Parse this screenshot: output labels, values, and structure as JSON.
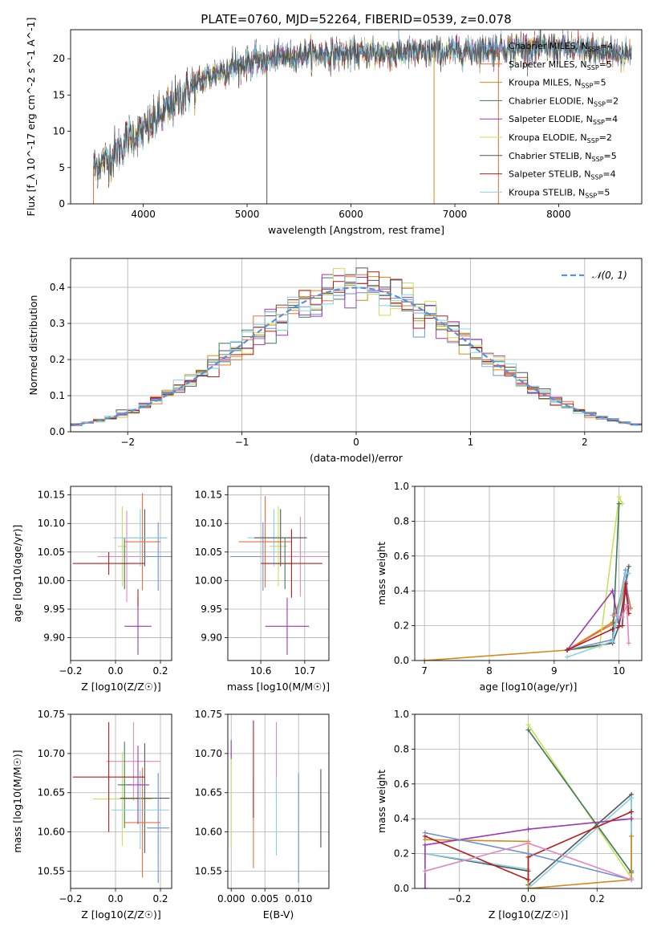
{
  "figure": {
    "title": "PLATE=0760, MJD=52264, FIBERID=0539, z=0.078"
  },
  "colors": {
    "Chabrier MILES": "#6f8fd6",
    "Salpeter MILES": "#e8703b",
    "Kroupa MILES": "#d48a1a",
    "Chabrier ELODIE": "#3f7a5a",
    "Salpeter ELODIE": "#9b3ab3",
    "Kroupa ELODIE": "#c8e05a",
    "Chabrier STELIB": "#555555",
    "Salpeter STELIB": "#b81c1c",
    "Kroupa STELIB": "#86d3e6",
    "pink": "#e089c0",
    "gaussian": "#5b8fd6"
  },
  "chart_data": [
    {
      "id": "spectrum",
      "type": "line",
      "title": "PLATE=0760, MJD=52264, FIBERID=0539, z=0.078",
      "xlabel": "wavelength [Angstrom, rest frame]",
      "ylabel": "Flux [f_λ 10^-17 erg cm^-2 s^-1 A^-1]",
      "xlim": [
        3300,
        8800
      ],
      "ylim": [
        0,
        24
      ],
      "xticks": [
        4000,
        5000,
        6000,
        7000,
        8000
      ],
      "yticks": [
        0,
        5,
        10,
        15,
        20
      ],
      "grid": false,
      "legend_position": "top-right",
      "legend": [
        {
          "series": "Chabrier MILES",
          "label": "Chabrier MILES, N",
          "sub": "SSP",
          "tail": "=4"
        },
        {
          "series": "Salpeter MILES",
          "label": "Salpeter MILES, N",
          "sub": "SSP",
          "tail": "=5"
        },
        {
          "series": "Kroupa MILES",
          "label": "Kroupa MILES, N",
          "sub": "SSP",
          "tail": "=5"
        },
        {
          "series": "Chabrier ELODIE",
          "label": "Chabrier ELODIE, N",
          "sub": "SSP",
          "tail": "=2"
        },
        {
          "series": "Salpeter ELODIE",
          "label": "Salpeter ELODIE, N",
          "sub": "SSP",
          "tail": "=4"
        },
        {
          "series": "Kroupa ELODIE",
          "label": "Kroupa ELODIE, N",
          "sub": "SSP",
          "tail": "=2"
        },
        {
          "series": "Chabrier STELIB",
          "label": "Chabrier STELIB, N",
          "sub": "SSP",
          "tail": "=5"
        },
        {
          "series": "Salpeter STELIB",
          "label": "Salpeter STELIB, N",
          "sub": "SSP",
          "tail": "=4"
        },
        {
          "series": "Kroupa STELIB",
          "label": "Kroupa STELIB, N",
          "sub": "SSP",
          "tail": "=5"
        }
      ],
      "continuum_knots": [
        [
          3520,
          5
        ],
        [
          3700,
          6.5
        ],
        [
          3850,
          9
        ],
        [
          4000,
          10
        ],
        [
          4150,
          12
        ],
        [
          4300,
          14
        ],
        [
          4500,
          16.5
        ],
        [
          4700,
          18
        ],
        [
          5000,
          19.5
        ],
        [
          5500,
          20.5
        ],
        [
          6000,
          20.7
        ],
        [
          6500,
          20.8
        ],
        [
          7000,
          21.0
        ],
        [
          7500,
          21.5
        ],
        [
          8000,
          21.5
        ],
        [
          8400,
          21.0
        ],
        [
          8700,
          20.6
        ]
      ]
    },
    {
      "id": "residual-histogram",
      "type": "histogram",
      "xlabel": "(data-model)/error",
      "ylabel": "Normed distribution",
      "xlim": [
        -2.5,
        2.5
      ],
      "ylim": [
        0,
        0.48
      ],
      "xticks": [
        -2,
        -1,
        0,
        1,
        2
      ],
      "yticks": [
        0,
        0.1,
        0.2,
        0.3,
        0.4
      ],
      "grid": true,
      "legend_position": "top-right",
      "legend": [
        {
          "label": "𝒩(0, 1)",
          "style": "dashed"
        }
      ],
      "bin_width": 0.1,
      "reference_curve": "standard normal density"
    },
    {
      "id": "age-vs-Z",
      "type": "errorbar",
      "xlabel": "Z [log10(Z/Z☉)]",
      "ylabel": "age [log10(age/yr)]",
      "xlim": [
        -0.2,
        0.25
      ],
      "ylim": [
        9.86,
        10.165
      ],
      "xticks": [
        -0.2,
        0.0,
        0.2
      ],
      "yticks": [
        9.9,
        9.95,
        10.0,
        10.05,
        10.1,
        10.15
      ],
      "grid": true,
      "points": [
        {
          "color": "Kroupa ELODIE",
          "x": 0.03,
          "xerr": 0.02,
          "y": 10.06,
          "yerr": 0.07
        },
        {
          "color": "pink",
          "x": 0.05,
          "xerr": 0.13,
          "y": 10.042,
          "yerr": 0.08
        },
        {
          "color": "Chabrier ELODIE",
          "x": 0.04,
          "xerr": 0.02,
          "y": 10.03,
          "yerr": 0.045
        },
        {
          "color": "Chabrier STELIB",
          "x": 0.13,
          "xerr": 0.1,
          "y": 10.075,
          "yerr": 0.05
        },
        {
          "color": "Chabrier MILES",
          "x": 0.19,
          "xerr": 0.07,
          "y": 10.042,
          "yerr": 0.06
        },
        {
          "color": "Kroupa STELIB",
          "x": 0.11,
          "xerr": 0.12,
          "y": 10.075,
          "yerr": 0.05
        },
        {
          "color": "Salpeter MILES",
          "x": 0.12,
          "xerr": 0.08,
          "y": 10.068,
          "yerr": 0.085
        },
        {
          "color": "Salpeter STELIB",
          "x": -0.03,
          "xerr": 0.16,
          "y": 10.03,
          "yerr": 0.02
        },
        {
          "color": "Salpeter ELODIE",
          "x": 0.1,
          "xerr": 0.06,
          "y": 9.92,
          "yerr": 0.05
        },
        {
          "color": "Salpeter STELIB",
          "x": 0.1,
          "xerr": 0.0,
          "y": 9.97,
          "yerr": 0.015
        }
      ]
    },
    {
      "id": "age-vs-mass",
      "type": "errorbar",
      "xlabel": "mass [log10(M/M☉)]",
      "xlim": [
        10.525,
        10.755
      ],
      "ylim": [
        9.86,
        10.165
      ],
      "xticks": [
        10.6,
        10.7
      ],
      "yticks": [
        9.9,
        9.95,
        10.0,
        10.05,
        10.1,
        10.15
      ],
      "grid": true,
      "points": [
        {
          "color": "Chabrier MILES",
          "x": 10.605,
          "xerr": 0.075,
          "y": 10.042,
          "yerr": 0.06
        },
        {
          "color": "pink",
          "x": 10.69,
          "xerr": 0.09,
          "y": 10.042,
          "yerr": 0.07
        },
        {
          "color": "Kroupa ELODIE",
          "x": 10.64,
          "xerr": 0.02,
          "y": 10.06,
          "yerr": 0.07
        },
        {
          "color": "Chabrier ELODIE",
          "x": 10.655,
          "xerr": 0.02,
          "y": 10.03,
          "yerr": 0.045
        },
        {
          "color": "Kroupa STELIB",
          "x": 10.63,
          "xerr": 0.06,
          "y": 10.075,
          "yerr": 0.05
        },
        {
          "color": "Salpeter MILES",
          "x": 10.61,
          "xerr": 0.06,
          "y": 10.068,
          "yerr": 0.08
        },
        {
          "color": "Salpeter STELIB",
          "x": 10.67,
          "xerr": 0.07,
          "y": 10.03,
          "yerr": 0.06
        },
        {
          "color": "Chabrier STELIB",
          "x": 10.645,
          "xerr": 0.06,
          "y": 10.075,
          "yerr": 0.05
        },
        {
          "color": "Salpeter ELODIE",
          "x": 10.66,
          "xerr": 0.05,
          "y": 9.92,
          "yerr": 0.05
        }
      ]
    },
    {
      "id": "weight-vs-age",
      "type": "line",
      "xlabel": "age [log10(age/yr)]",
      "ylabel": "mass weight",
      "xlim": [
        6.85,
        10.35
      ],
      "ylim": [
        0,
        1.0
      ],
      "xticks": [
        7,
        8,
        9,
        10
      ],
      "yticks": [
        0.0,
        0.2,
        0.4,
        0.6,
        0.8,
        1.0
      ],
      "grid": true,
      "series": [
        {
          "name": "Kroupa MILES",
          "points": [
            [
              7.0,
              0.0
            ],
            [
              9.2,
              0.06
            ],
            [
              9.9,
              0.22
            ],
            [
              10.1,
              0.45
            ],
            [
              10.15,
              0.27
            ]
          ]
        },
        {
          "name": "Salpeter MILES",
          "points": [
            [
              9.2,
              0.06
            ],
            [
              9.95,
              0.22
            ],
            [
              10.1,
              0.45
            ],
            [
              10.18,
              0.3
            ]
          ]
        },
        {
          "name": "Kroupa ELODIE",
          "points": [
            [
              9.2,
              0.06
            ],
            [
              9.7,
              0.08
            ],
            [
              10.0,
              0.94
            ],
            [
              10.05,
              0.9
            ]
          ]
        },
        {
          "name": "Chabrier ELODIE",
          "points": [
            [
              9.2,
              0.06
            ],
            [
              9.9,
              0.1
            ],
            [
              10.0,
              0.9
            ]
          ]
        },
        {
          "name": "Salpeter ELODIE",
          "points": [
            [
              9.2,
              0.06
            ],
            [
              9.9,
              0.4
            ],
            [
              10.0,
              0.2
            ],
            [
              10.1,
              0.4
            ],
            [
              10.15,
              0.3
            ]
          ]
        },
        {
          "name": "Chabrier STELIB",
          "points": [
            [
              9.2,
              0.06
            ],
            [
              9.9,
              0.1
            ],
            [
              10.0,
              0.2
            ],
            [
              10.15,
              0.54
            ]
          ]
        },
        {
          "name": "Chabrier MILES",
          "points": [
            [
              9.2,
              0.06
            ],
            [
              9.9,
              0.12
            ],
            [
              10.1,
              0.52
            ],
            [
              10.15,
              0.3
            ]
          ]
        },
        {
          "name": "Salpeter STELIB",
          "points": [
            [
              9.2,
              0.06
            ],
            [
              9.9,
              0.18
            ],
            [
              10.05,
              0.2
            ],
            [
              10.1,
              0.44
            ],
            [
              10.15,
              0.27
            ]
          ]
        },
        {
          "name": "Kroupa STELIB",
          "points": [
            [
              9.2,
              0.02
            ],
            [
              9.9,
              0.11
            ],
            [
              10.1,
              0.5
            ],
            [
              10.15,
              0.5
            ]
          ]
        },
        {
          "name": "pink",
          "points": [
            [
              9.9,
              0.26
            ],
            [
              10.05,
              0.25
            ],
            [
              10.12,
              0.32
            ],
            [
              10.15,
              0.1
            ]
          ]
        }
      ]
    },
    {
      "id": "mass-vs-Z",
      "type": "errorbar",
      "xlabel": "Z [log10(Z/Z☉)]",
      "ylabel": "mass [log10(M/M☉)]",
      "xlim": [
        -0.2,
        0.25
      ],
      "ylim": [
        10.528,
        10.75
      ],
      "xticks": [
        -0.2,
        0.0,
        0.2
      ],
      "yticks": [
        10.55,
        10.6,
        10.65,
        10.7,
        10.75
      ],
      "grid": true,
      "points": [
        {
          "color": "Kroupa ELODIE",
          "x": 0.03,
          "xerr": 0.13,
          "y": 10.642,
          "yerr": 0.06
        },
        {
          "color": "pink",
          "x": 0.08,
          "xerr": 0.12,
          "y": 10.69,
          "yerr": 0.05
        },
        {
          "color": "Chabrier ELODIE",
          "x": 0.04,
          "xerr": 0.03,
          "y": 10.66,
          "yerr": 0.055
        },
        {
          "color": "Chabrier STELIB",
          "x": 0.13,
          "xerr": 0.11,
          "y": 10.643,
          "yerr": 0.07
        },
        {
          "color": "Chabrier MILES",
          "x": 0.19,
          "xerr": 0.05,
          "y": 10.605,
          "yerr": 0.07
        },
        {
          "color": "Kroupa STELIB",
          "x": 0.11,
          "xerr": 0.13,
          "y": 10.628,
          "yerr": 0.05
        },
        {
          "color": "Salpeter MILES",
          "x": 0.12,
          "xerr": 0.08,
          "y": 10.612,
          "yerr": 0.07
        },
        {
          "color": "Salpeter STELIB",
          "x": -0.03,
          "xerr": 0.16,
          "y": 10.67,
          "yerr": 0.07
        },
        {
          "color": "Salpeter ELODIE",
          "x": 0.1,
          "xerr": 0.05,
          "y": 10.66,
          "yerr": 0.05
        }
      ]
    },
    {
      "id": "mass-vs-ebv",
      "type": "errorbar",
      "xlabel": "E(B-V)",
      "xlim": [
        -0.0005,
        0.0145
      ],
      "ylim": [
        10.528,
        10.75
      ],
      "xticks": [
        0.0,
        0.005,
        0.01
      ],
      "yticks": [
        10.55,
        10.6,
        10.65,
        10.7,
        10.75
      ],
      "grid": true,
      "points": [
        {
          "color": "Kroupa ELODIE",
          "x": 0.0,
          "xerr": 0.0,
          "y": 10.64,
          "yerr": 0.06
        },
        {
          "color": "Salpeter ELODIE",
          "x": 0.0,
          "xerr": 0.0,
          "y": 10.705,
          "yerr": 0.012
        },
        {
          "color": "Salpeter MILES",
          "x": 0.0033,
          "xerr": 0.0,
          "y": 10.612,
          "yerr": 0.058
        },
        {
          "color": "Salpeter STELIB",
          "x": 0.0033,
          "xerr": 0.0,
          "y": 10.68,
          "yerr": 0.062
        },
        {
          "color": "pink",
          "x": 0.0067,
          "xerr": 0.0,
          "y": 10.69,
          "yerr": 0.05
        },
        {
          "color": "Kroupa STELIB",
          "x": 0.0067,
          "xerr": 0.0,
          "y": 10.62,
          "yerr": 0.05
        },
        {
          "color": "Chabrier MILES",
          "x": 0.01,
          "xerr": 0.0,
          "y": 10.605,
          "yerr": 0.07
        },
        {
          "color": "Chabrier STELIB",
          "x": 0.0133,
          "xerr": 0.0,
          "y": 10.63,
          "yerr": 0.05
        }
      ]
    },
    {
      "id": "weight-vs-Z",
      "type": "line",
      "xlabel": "Z [log10(Z/Z☉)]",
      "ylabel": "mass weight",
      "xlim": [
        -0.33,
        0.33
      ],
      "ylim": [
        0,
        1.0
      ],
      "xticks": [
        -0.2,
        0.0,
        0.2
      ],
      "yticks": [
        0.0,
        0.2,
        0.4,
        0.6,
        0.8,
        1.0
      ],
      "grid": true,
      "series": [
        {
          "name": "Kroupa ELODIE",
          "points": [
            [
              0.0,
              0.94
            ],
            [
              0.3,
              0.06
            ]
          ]
        },
        {
          "name": "Chabrier ELODIE",
          "points": [
            [
              0.0,
              0.91
            ],
            [
              0.3,
              0.09
            ]
          ]
        },
        {
          "name": "Chabrier STELIB",
          "points": [
            [
              -0.3,
              0.2
            ],
            [
              0.0,
              0.1
            ],
            [
              0.0,
              0.02
            ],
            [
              0.3,
              0.54
            ],
            [
              0.3,
              0.1
            ]
          ]
        },
        {
          "name": "Kroupa STELIB",
          "points": [
            [
              -0.3,
              0.2
            ],
            [
              0.0,
              0.11
            ],
            [
              0.0,
              0.0
            ],
            [
              0.3,
              0.52
            ],
            [
              0.3,
              0.06
            ]
          ]
        },
        {
          "name": "Kroupa MILES",
          "points": [
            [
              -0.3,
              0.28
            ],
            [
              0.0,
              0.27
            ],
            [
              0.0,
              0.0
            ],
            [
              0.3,
              0.05
            ],
            [
              0.3,
              0.3
            ]
          ]
        },
        {
          "name": "Salpeter ELODIE",
          "points": [
            [
              -0.3,
              0.0
            ],
            [
              -0.3,
              0.25
            ],
            [
              0.0,
              0.34
            ],
            [
              0.3,
              0.4
            ]
          ]
        },
        {
          "name": "Salpeter STELIB",
          "points": [
            [
              -0.3,
              0.3
            ],
            [
              0.0,
              0.05
            ],
            [
              0.0,
              0.18
            ],
            [
              0.3,
              0.44
            ]
          ]
        },
        {
          "name": "Chabrier MILES",
          "points": [
            [
              -0.3,
              0.32
            ],
            [
              0.0,
              0.2
            ],
            [
              0.3,
              0.05
            ]
          ]
        },
        {
          "name": "pink",
          "points": [
            [
              -0.3,
              0.1
            ],
            [
              0.0,
              0.26
            ],
            [
              0.3,
              0.05
            ]
          ]
        }
      ]
    }
  ]
}
